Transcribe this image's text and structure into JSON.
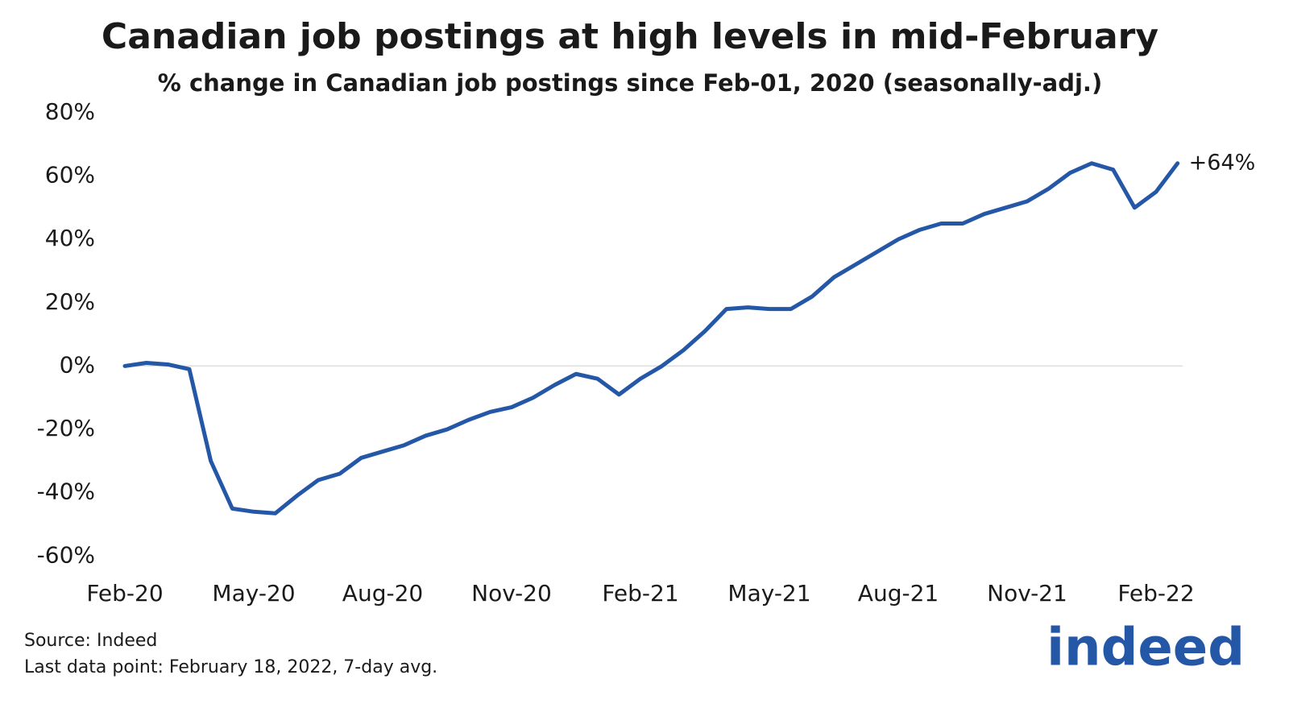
{
  "chart_data": {
    "type": "line",
    "title": "Canadian job postings at high levels in mid-February",
    "subtitle": "% change in Canadian job postings since Feb-01, 2020 (seasonally-adj.)",
    "categories": [
      "Feb-20",
      null,
      null,
      null,
      null,
      null,
      "May-20",
      null,
      null,
      null,
      null,
      null,
      "Aug-20",
      null,
      null,
      null,
      null,
      null,
      "Nov-20",
      null,
      null,
      null,
      null,
      null,
      "Feb-21",
      null,
      null,
      null,
      null,
      null,
      "May-21",
      null,
      null,
      null,
      null,
      null,
      "Aug-21",
      null,
      null,
      null,
      null,
      null,
      "Nov-21",
      null,
      null,
      null,
      null,
      null,
      "Feb-22",
      null
    ],
    "series": [
      {
        "name": "Canada",
        "color": "#2557a7",
        "values": [
          0,
          1,
          0.5,
          -1,
          -30,
          -45,
          -46,
          -46.5,
          -41,
          -36,
          -34,
          -29,
          -27,
          -25,
          -22,
          -20,
          -17,
          -14.5,
          -13,
          -10,
          -6,
          -2.5,
          -4,
          -9,
          -4,
          0,
          5,
          11,
          18,
          18.5,
          18,
          18,
          22,
          28,
          32,
          36,
          40,
          43,
          45,
          45,
          48,
          50,
          52,
          56,
          61,
          64,
          62,
          50,
          55,
          64
        ]
      }
    ],
    "annotation": "+64%",
    "ylim": [
      -65,
      82
    ],
    "yticks": [
      {
        "value": 80,
        "label": "80%"
      },
      {
        "value": 60,
        "label": "60%"
      },
      {
        "value": 40,
        "label": "40%"
      },
      {
        "value": 20,
        "label": "20%"
      },
      {
        "value": 0,
        "label": "0%"
      },
      {
        "value": -20,
        "label": "-20%"
      },
      {
        "value": -40,
        "label": "-40%"
      },
      {
        "value": -60,
        "label": "-60%"
      }
    ],
    "zero_line": true,
    "source": "Source: Indeed",
    "note": "Last data point: February 18, 2022, 7-day avg.",
    "logo": "indeed"
  }
}
